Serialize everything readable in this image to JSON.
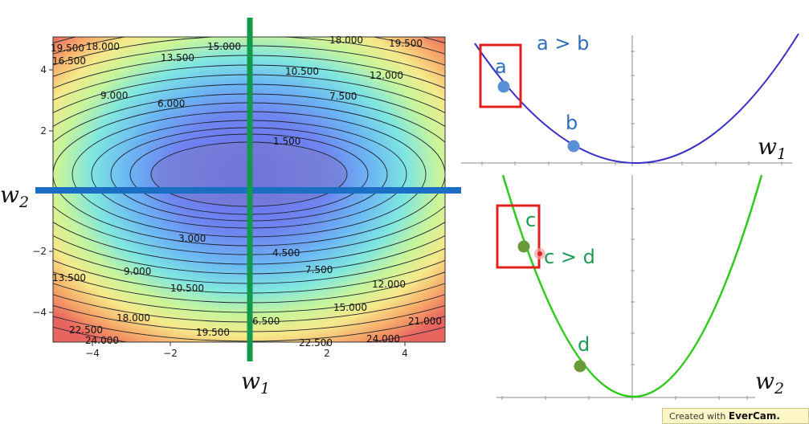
{
  "contour_plot": {
    "x_ticks": [
      "−4",
      "−2",
      "2",
      "4"
    ],
    "y_ticks": [
      "4",
      "2",
      "−2",
      "−4"
    ],
    "contour_labels": [
      "19.500",
      "18.000",
      "15.000",
      "18.000",
      "19.500",
      "16.500",
      "13.500",
      "10.500",
      "12.000",
      "9.000",
      "6.000",
      "7.500",
      "1.500",
      "3.000",
      "4.500",
      "7.500",
      "9.000",
      "10.500",
      "12.000",
      "13.500",
      "15.000",
      "18.000",
      "6.500",
      "21.000",
      "22.500",
      "24.000",
      "19.500",
      "22.500",
      "24.000"
    ],
    "axis_label_w1": "w",
    "axis_label_w1_sub": "1",
    "axis_label_w2": "w",
    "axis_label_w2_sub": "2",
    "colors": {
      "w1_line": "#129a4c",
      "w2_line": "#1a6fc4"
    }
  },
  "top_curve": {
    "title": "a > b",
    "point_a_label": "a",
    "point_b_label": "b",
    "axis_label": "w",
    "axis_label_sub": "1",
    "colors": {
      "curve": "#3a30c8",
      "point": "#5b8fd6",
      "text": "#2e6fb5",
      "highlight": "#e0201f"
    }
  },
  "bottom_curve": {
    "title": "c > d",
    "point_c_label": "c",
    "point_d_label": "d",
    "axis_label": "w",
    "axis_label_sub": "2",
    "colors": {
      "curve": "#2ecc1a",
      "point": "#6a9a3a",
      "text": "#1f9a55",
      "highlight": "#e0201f"
    }
  },
  "watermark": {
    "prefix": "Created with",
    "brand": "EverCam."
  }
}
